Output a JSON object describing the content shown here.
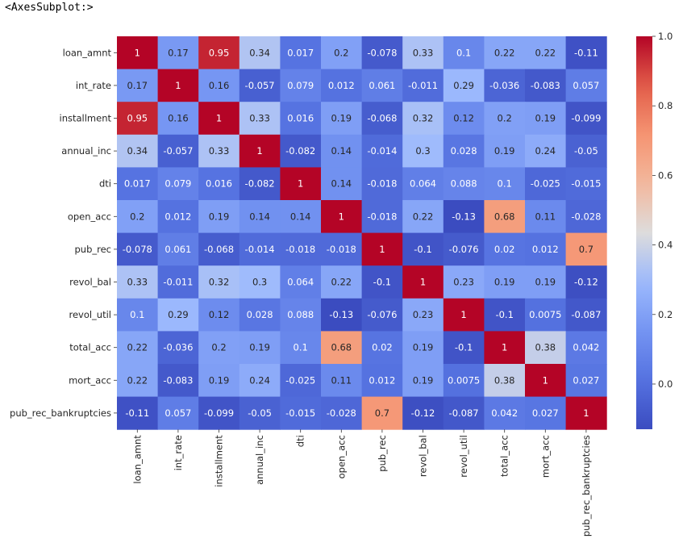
{
  "output_text": "<AxesSubplot:>",
  "chart_data": {
    "type": "heatmap",
    "colormap": "coolwarm",
    "title": "",
    "xlabel": "",
    "ylabel": "",
    "labels": [
      "loan_amnt",
      "int_rate",
      "installment",
      "annual_inc",
      "dti",
      "open_acc",
      "pub_rec",
      "revol_bal",
      "revol_util",
      "total_acc",
      "mort_acc",
      "pub_rec_bankruptcies"
    ],
    "values": [
      [
        1,
        0.17,
        0.95,
        0.34,
        0.017,
        0.2,
        -0.078,
        0.33,
        0.1,
        0.22,
        0.22,
        -0.11
      ],
      [
        0.17,
        1,
        0.16,
        -0.057,
        0.079,
        0.012,
        0.061,
        -0.011,
        0.29,
        -0.036,
        -0.083,
        0.057
      ],
      [
        0.95,
        0.16,
        1,
        0.33,
        0.016,
        0.19,
        -0.068,
        0.32,
        0.12,
        0.2,
        0.19,
        -0.099
      ],
      [
        0.34,
        -0.057,
        0.33,
        1,
        -0.082,
        0.14,
        -0.014,
        0.3,
        0.028,
        0.19,
        0.24,
        -0.05
      ],
      [
        0.017,
        0.079,
        0.016,
        -0.082,
        1,
        0.14,
        -0.018,
        0.064,
        0.088,
        0.1,
        -0.025,
        -0.015
      ],
      [
        0.2,
        0.012,
        0.19,
        0.14,
        0.14,
        1,
        -0.018,
        0.22,
        -0.13,
        0.68,
        0.11,
        -0.028
      ],
      [
        -0.078,
        0.061,
        -0.068,
        -0.014,
        -0.018,
        -0.018,
        1,
        -0.1,
        -0.076,
        0.02,
        0.012,
        0.7
      ],
      [
        0.33,
        -0.011,
        0.32,
        0.3,
        0.064,
        0.22,
        -0.1,
        1,
        0.23,
        0.19,
        0.19,
        -0.12
      ],
      [
        0.1,
        0.29,
        0.12,
        0.028,
        0.088,
        -0.13,
        -0.076,
        0.23,
        1,
        -0.1,
        0.0075,
        -0.087
      ],
      [
        0.22,
        -0.036,
        0.2,
        0.19,
        0.1,
        0.68,
        0.02,
        0.19,
        -0.1,
        1,
        0.38,
        0.042
      ],
      [
        0.22,
        -0.083,
        0.19,
        0.24,
        -0.025,
        0.11,
        0.012,
        0.19,
        0.0075,
        0.38,
        1,
        0.027
      ],
      [
        -0.11,
        0.057,
        -0.099,
        -0.05,
        -0.015,
        -0.028,
        0.7,
        -0.12,
        -0.087,
        0.042,
        0.027,
        1
      ]
    ],
    "vmin": -0.13,
    "vmax": 1.0,
    "colorbar_ticks": [
      "0.0",
      "0.2",
      "0.4",
      "0.6",
      "0.8",
      "1.0"
    ],
    "annotate": true,
    "grid": false,
    "colorbar_position": "right"
  }
}
